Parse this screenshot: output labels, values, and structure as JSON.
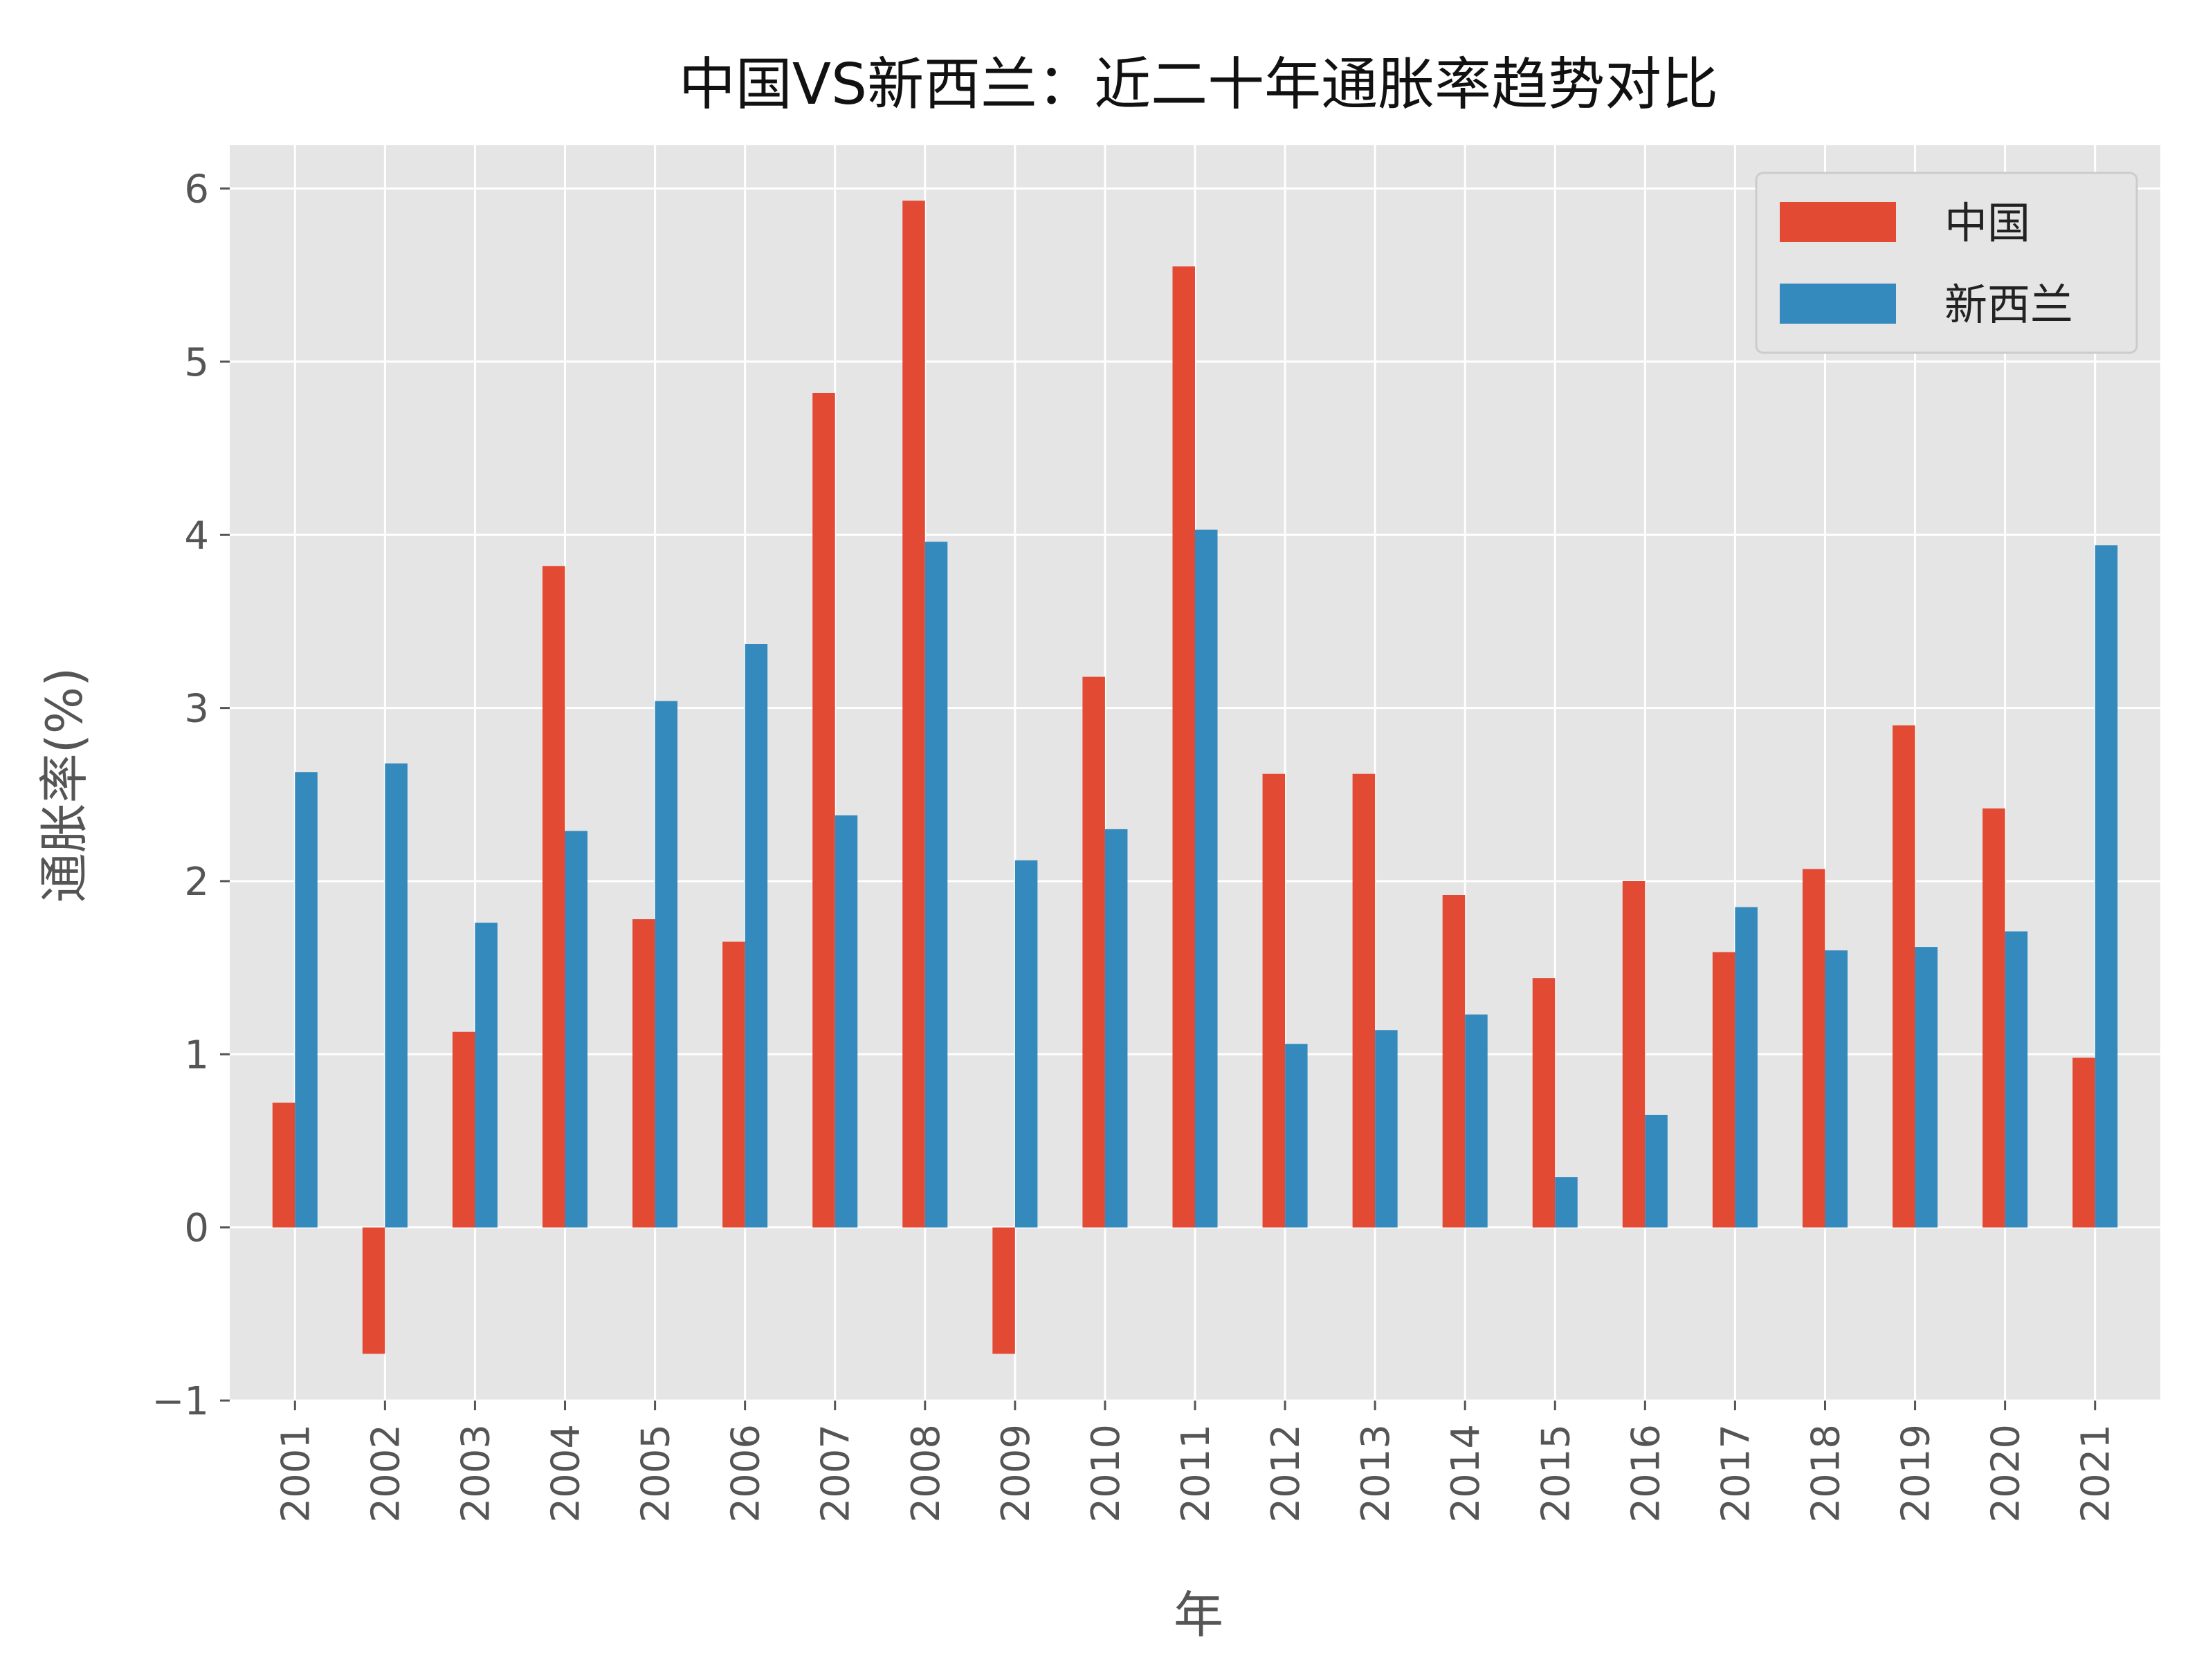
{
  "chart_data": {
    "type": "bar",
    "title": "中国VS新西兰：近二十年通胀率趋势对比",
    "xlabel": "年",
    "ylabel": "通胀率(%)",
    "categories": [
      "2001",
      "2002",
      "2003",
      "2004",
      "2005",
      "2006",
      "2007",
      "2008",
      "2009",
      "2010",
      "2011",
      "2012",
      "2013",
      "2014",
      "2015",
      "2016",
      "2017",
      "2018",
      "2019",
      "2020",
      "2021"
    ],
    "series": [
      {
        "name": "中国",
        "color": "#E24A33",
        "values": [
          0.72,
          -0.73,
          1.13,
          3.82,
          1.78,
          1.65,
          4.82,
          5.93,
          -0.73,
          3.18,
          5.55,
          2.62,
          2.62,
          1.92,
          1.44,
          2.0,
          1.59,
          2.07,
          2.9,
          2.42,
          0.98
        ]
      },
      {
        "name": "新西兰",
        "color": "#348ABD",
        "values": [
          2.63,
          2.68,
          1.76,
          2.29,
          3.04,
          3.37,
          2.38,
          3.96,
          2.12,
          2.3,
          4.03,
          1.06,
          1.14,
          1.23,
          0.29,
          0.65,
          1.85,
          1.6,
          1.62,
          1.71,
          3.94
        ]
      }
    ],
    "yticks": [
      -1,
      0,
      1,
      2,
      3,
      4,
      5,
      6
    ],
    "ylim": [
      -1.0,
      6.25
    ],
    "grid": true,
    "legend_position": "upper-right",
    "background": "#E5E5E5"
  }
}
